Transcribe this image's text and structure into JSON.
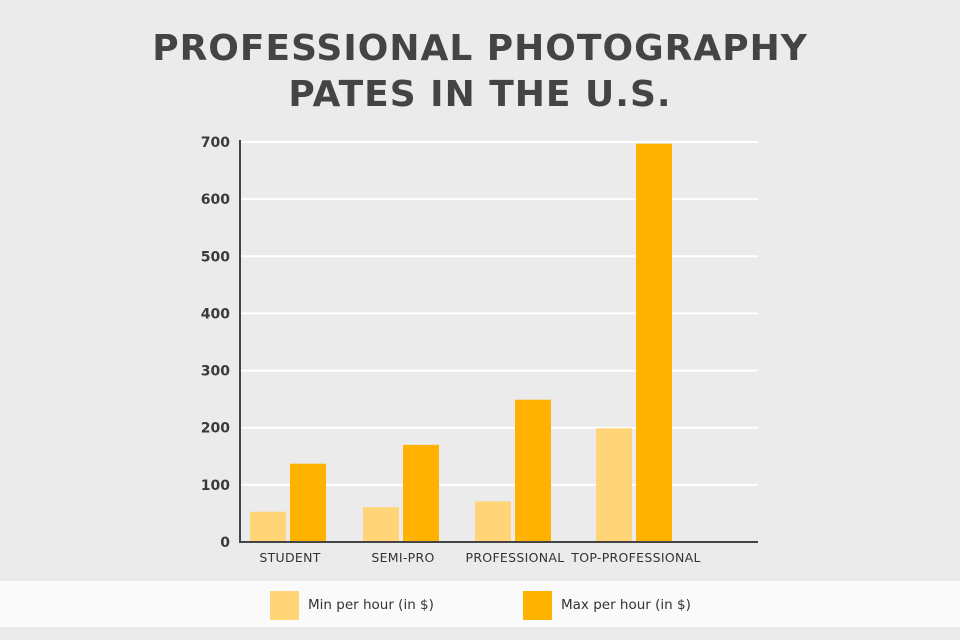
{
  "title_line1": "PROFESSIONAL PHOTOGRAPHY",
  "title_line2": "PATES IN THE U.S.",
  "colors": {
    "min": "#ffd577",
    "max": "#ffb300",
    "background": "#ebebeb",
    "legend_background": "#fafafa",
    "axis": "#444444",
    "grid": "#ffffff"
  },
  "chart_data": {
    "type": "bar",
    "title": "PROFESSIONAL PHOTOGRAPHY PATES IN THE U.S.",
    "categories": [
      "STUDENT",
      "SEMI-PRO",
      "PROFESSIONAL",
      "TOP-PROFESSIONAL"
    ],
    "series": [
      {
        "name": "Min per hour (in $)",
        "values": [
          53,
          61,
          71,
          199
        ]
      },
      {
        "name": "Max per hour (in $)",
        "values": [
          137,
          170,
          249,
          697
        ]
      }
    ],
    "ylim": [
      0,
      700
    ],
    "yticks": [
      0,
      100,
      200,
      300,
      400,
      500,
      600,
      700
    ],
    "grid": true,
    "legend_position": "bottom"
  },
  "legend": {
    "min_label": "Min per hour (in $)",
    "max_label": "Max per hour (in $)"
  }
}
